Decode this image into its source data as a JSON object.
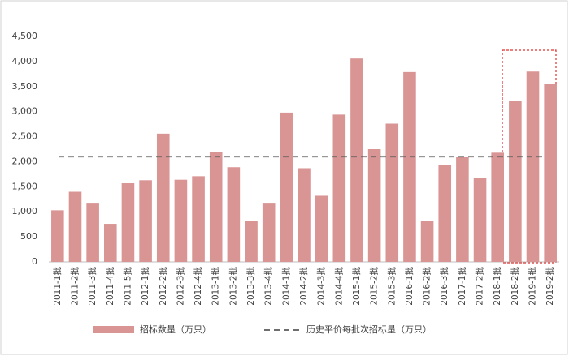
{
  "chart_data": {
    "type": "bar",
    "categories": [
      "2011-1批",
      "2011-2批",
      "2011-3批",
      "2011-4批",
      "2011-5批",
      "2012-1批",
      "2012-2批",
      "2012-3批",
      "2012-4批",
      "2013-1批",
      "2013-2批",
      "2013-3批",
      "2013-4批",
      "2014-1批",
      "2014-2批",
      "2014-3批",
      "2014-4批",
      "2015-1批",
      "2015-2批",
      "2015-3批",
      "2016-1批",
      "2016-2批",
      "2016-3批",
      "2017-1批",
      "2017-2批",
      "2018-1批",
      "2018-2批",
      "2019-1批",
      "2019-2批"
    ],
    "series": [
      {
        "name": "招标数量（万只）",
        "color": "#d99594",
        "values": [
          1030,
          1400,
          1180,
          760,
          1570,
          1630,
          2560,
          1640,
          1710,
          2200,
          1890,
          810,
          1180,
          2980,
          1870,
          1320,
          2940,
          4060,
          2250,
          2760,
          3790,
          810,
          1940,
          2090,
          1670,
          2180,
          3220,
          3800,
          3550
        ]
      }
    ],
    "reference_line": {
      "name": "历史平价每批次招标量（万只）",
      "value": 2100,
      "color": "#595959"
    },
    "ylim": [
      0,
      4500
    ],
    "yticks": [
      0,
      500,
      {
        "value": 1000,
        "label": "1,000"
      },
      {
        "value": 1500,
        "label": "1,500"
      },
      {
        "value": 2000,
        "label": "2,000"
      },
      {
        "value": 2500,
        "label": "2,500"
      },
      {
        "value": 3000,
        "label": "3,000"
      },
      {
        "value": 3500,
        "label": "3,500"
      },
      {
        "value": 4000,
        "label": "4,000"
      },
      {
        "value": 4500,
        "label": "4,500"
      }
    ]
  }
}
